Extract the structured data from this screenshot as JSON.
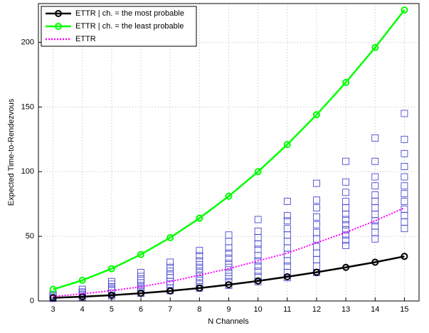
{
  "chart_data": {
    "type": "line",
    "xlabel": "N Channels",
    "ylabel": "Expected Time-to-Rendezvous",
    "x": [
      3,
      4,
      5,
      6,
      7,
      8,
      9,
      10,
      11,
      12,
      13,
      14,
      15
    ],
    "xlim": [
      2.5,
      15.5
    ],
    "xticks": [
      3,
      4,
      5,
      6,
      7,
      8,
      9,
      10,
      11,
      12,
      13,
      14,
      15
    ],
    "ylim": [
      0,
      230
    ],
    "yticks": [
      0,
      50,
      100,
      150,
      200
    ],
    "grid": true,
    "legend": "upper left",
    "series": [
      {
        "name": "ETTR | ch. = the most probable",
        "color": "#000000",
        "marker": "circle",
        "dash": "solid",
        "values": [
          2.5,
          3.3,
          4.5,
          6,
          7.8,
          10,
          12.6,
          15.5,
          18.7,
          22.2,
          26,
          30,
          34.5
        ]
      },
      {
        "name": "ETTR | ch. = the least probable",
        "color": "#00ff00",
        "marker": "circle",
        "dash": "solid",
        "values": [
          9,
          16,
          25,
          36,
          49,
          64,
          81,
          100,
          121,
          144,
          169,
          196,
          225
        ]
      },
      {
        "name": "ETTR",
        "color": "#ff00ff",
        "marker": "none",
        "dash": "dotted",
        "values": [
          3.5,
          5.5,
          8,
          11,
          15,
          20,
          25,
          31,
          37,
          45,
          53,
          62,
          72
        ]
      }
    ],
    "scatter": {
      "color": "#3333cc",
      "x": [
        3,
        3,
        3,
        3,
        4,
        4,
        4,
        4,
        4,
        5,
        5,
        5,
        5,
        5,
        5,
        5,
        6,
        6,
        6,
        6,
        6,
        6,
        6,
        6,
        7,
        7,
        7,
        7,
        7,
        7,
        7,
        7,
        7,
        8,
        8,
        8,
        8,
        8,
        8,
        8,
        8,
        8,
        8,
        9,
        9,
        9,
        9,
        9,
        9,
        9,
        9,
        9,
        9,
        9,
        10,
        10,
        10,
        10,
        10,
        10,
        10,
        10,
        10,
        10,
        10,
        11,
        11,
        11,
        11,
        11,
        11,
        11,
        11,
        11,
        11,
        11,
        11,
        12,
        12,
        12,
        12,
        12,
        12,
        12,
        12,
        12,
        12,
        12,
        12,
        13,
        13,
        13,
        13,
        13,
        13,
        13,
        13,
        13,
        13,
        13,
        13,
        14,
        14,
        14,
        14,
        14,
        14,
        14,
        14,
        14,
        14,
        14,
        14,
        15,
        15,
        15,
        15,
        15,
        15,
        15,
        15,
        15,
        15,
        15,
        15
      ],
      "values": [
        2,
        3,
        4,
        5,
        3,
        5,
        6,
        7,
        9,
        4,
        6,
        8,
        9,
        11,
        13,
        15,
        6,
        8,
        10,
        12,
        14,
        16,
        19,
        22,
        8,
        10,
        13,
        15,
        18,
        20,
        23,
        26,
        30,
        10,
        13,
        16,
        19,
        22,
        25,
        28,
        31,
        35,
        39,
        12,
        15,
        19,
        22,
        26,
        29,
        33,
        37,
        41,
        46,
        51,
        15,
        19,
        23,
        27,
        31,
        35,
        40,
        44,
        49,
        54,
        63,
        18,
        22,
        27,
        31,
        36,
        41,
        46,
        51,
        56,
        62,
        66,
        77,
        22,
        27,
        32,
        37,
        42,
        48,
        53,
        59,
        65,
        72,
        78,
        91,
        43,
        47,
        51,
        55,
        59,
        63,
        67,
        72,
        77,
        84,
        92,
        108,
        48,
        53,
        58,
        62,
        67,
        72,
        77,
        82,
        89,
        96,
        108,
        126,
        56,
        61,
        66,
        71,
        77,
        83,
        89,
        96,
        104,
        114,
        125,
        145
      ]
    }
  }
}
